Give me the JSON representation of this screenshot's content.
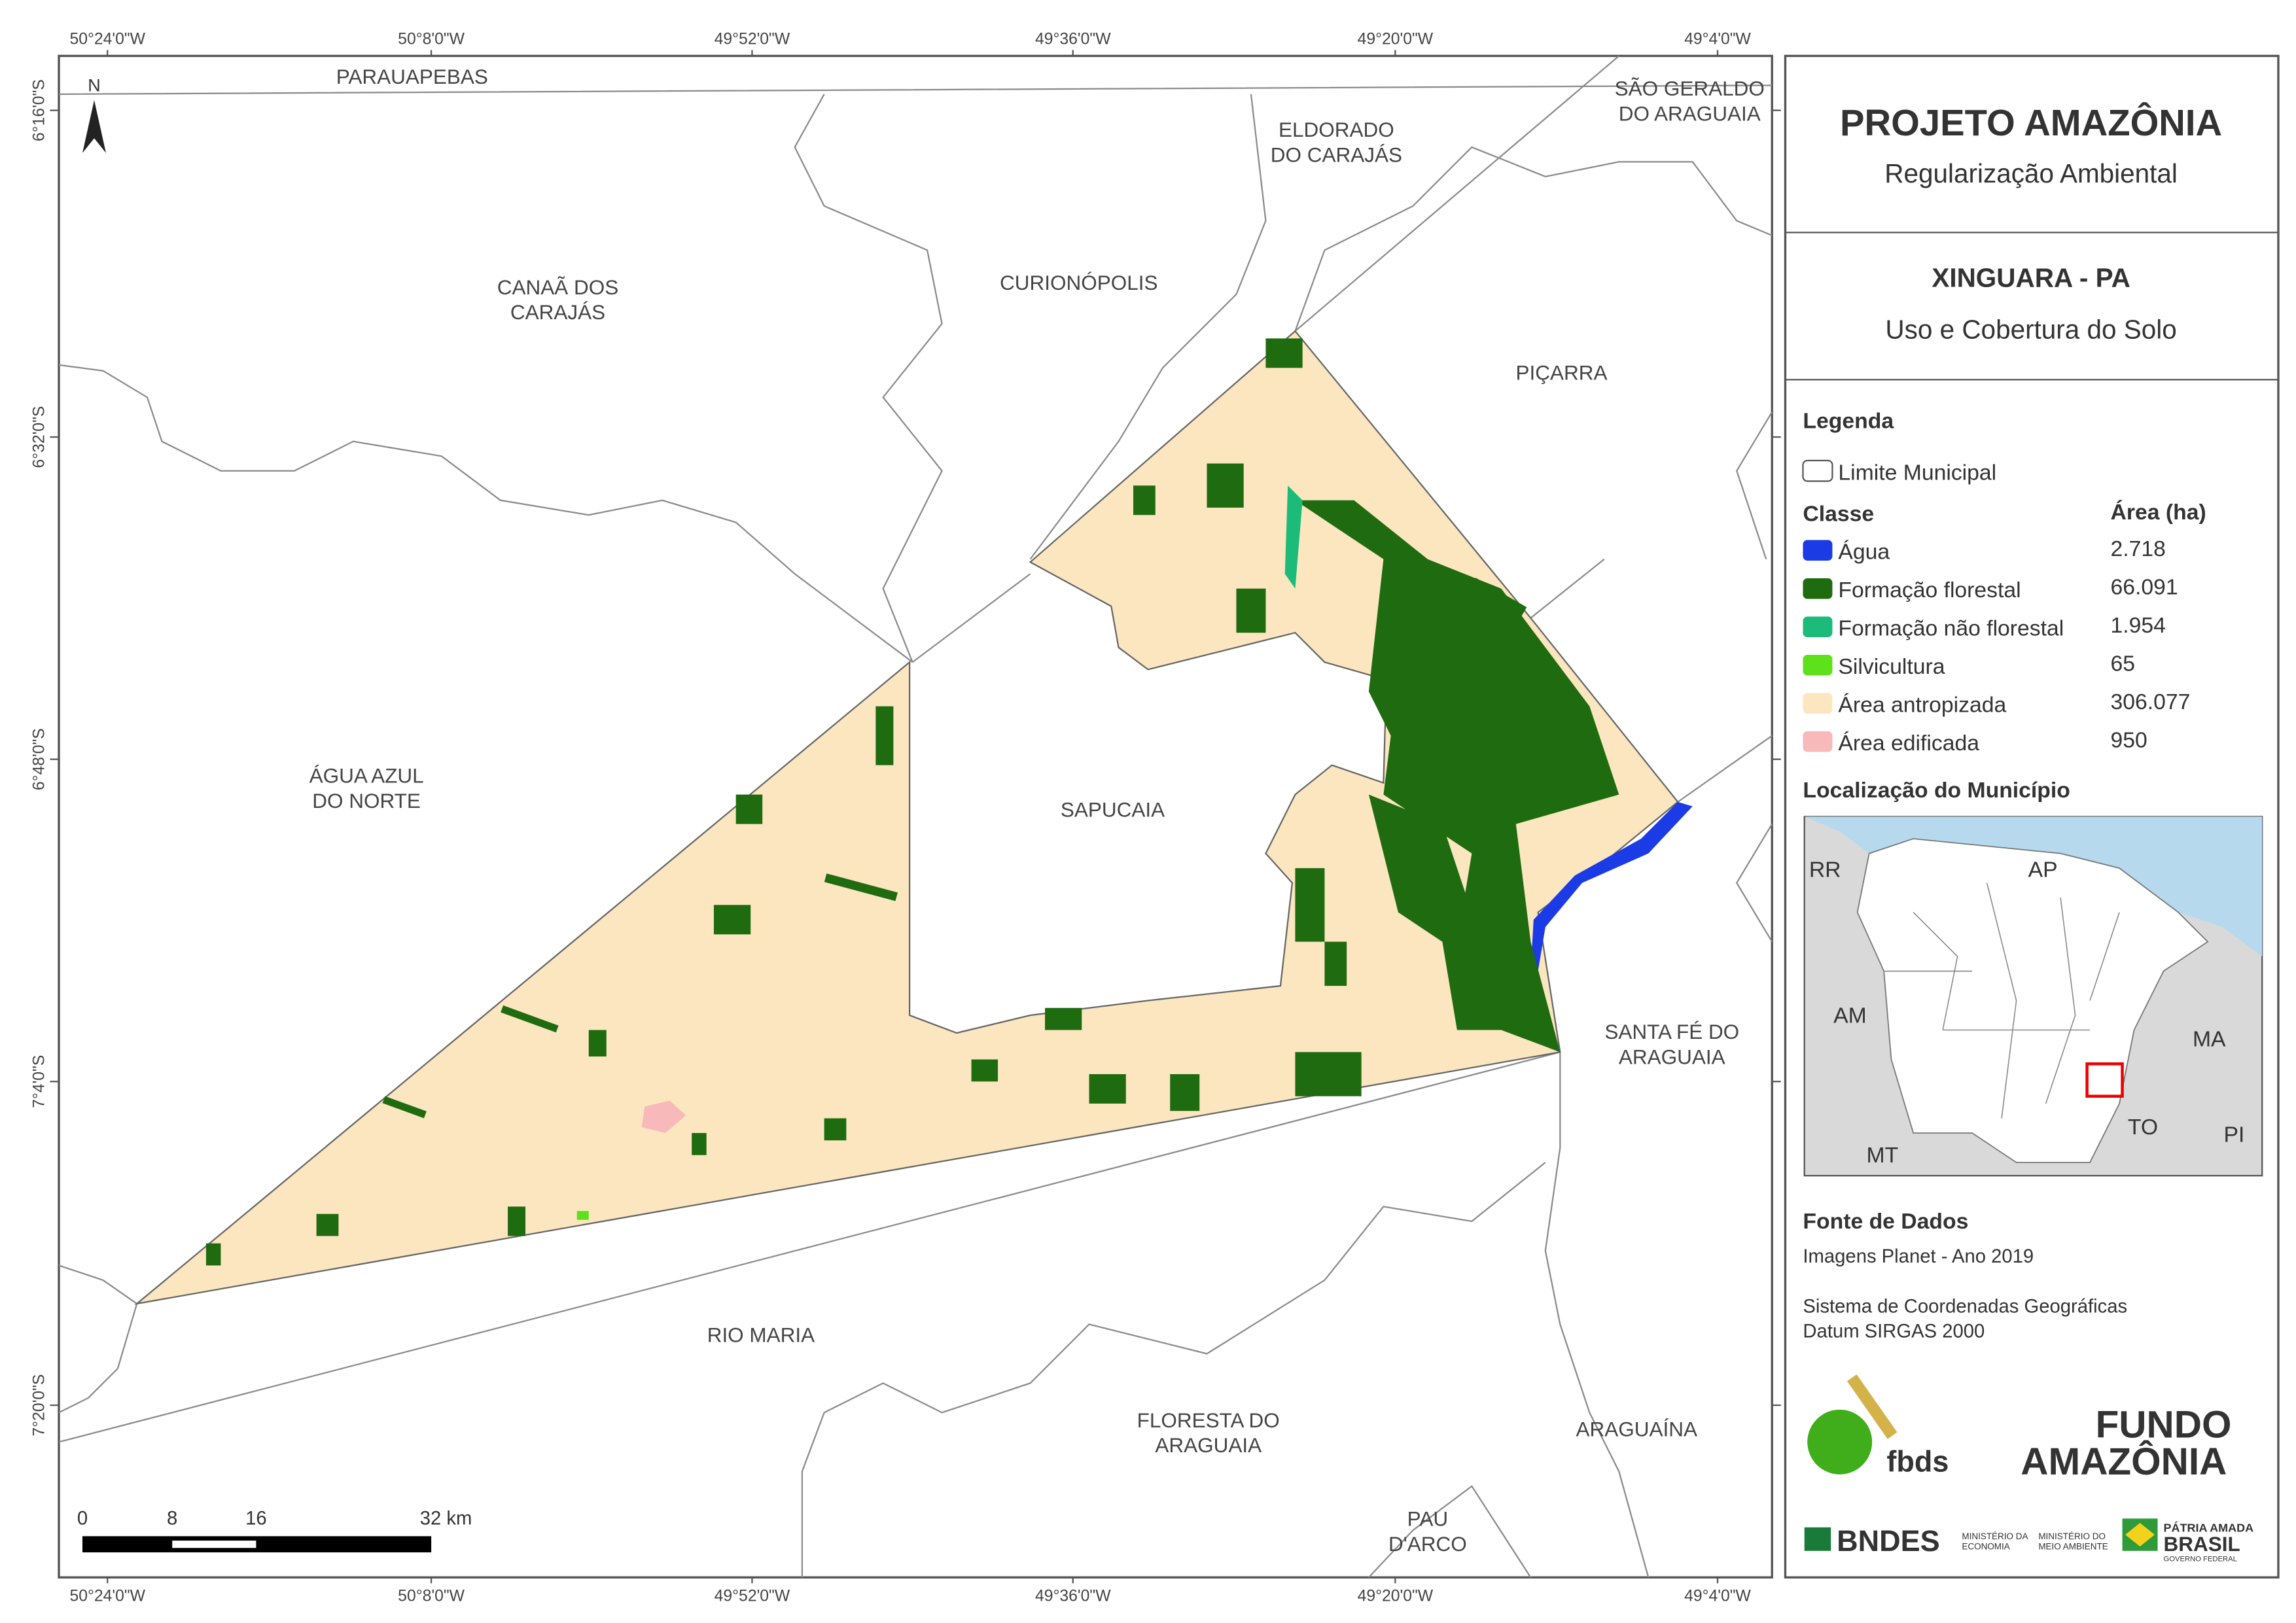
{
  "coordinates": {
    "top": [
      "50°24'0\"W",
      "50°8'0\"W",
      "49°52'0\"W",
      "49°36'0\"W",
      "49°20'0\"W",
      "49°4'0\"W"
    ],
    "bottom": [
      "50°24'0\"W",
      "50°8'0\"W",
      "49°52'0\"W",
      "49°36'0\"W",
      "49°20'0\"W",
      "49°4'0\"W"
    ],
    "left": [
      "6°16'0\"S",
      "6°32'0\"S",
      "6°48'0\"S",
      "7°4'0\"S",
      "7°20'0\"S"
    ]
  },
  "north": "N",
  "places": [
    [
      "PARAUAPEBAS"
    ],
    [
      "SÃO GERALDO",
      "DO ARAGUAIA"
    ],
    [
      "ELDORADO",
      "DO CARAJÁS"
    ],
    [
      "CANAÃ DOS",
      "CARAJÁS"
    ],
    [
      "CURIONÓPOLIS"
    ],
    [
      "PIÇARRA"
    ],
    [
      "ÁGUA AZUL",
      "DO NORTE"
    ],
    [
      "SAPUCAIA"
    ],
    [
      "SANTA FÉ DO",
      "ARAGUAIA"
    ],
    [
      "RIO MARIA"
    ],
    [
      "FLORESTA DO",
      "ARAGUAIA"
    ],
    [
      "ARAGUAÍNA"
    ],
    [
      "PAU",
      "D'ARCO"
    ]
  ],
  "scale": [
    "0",
    "8",
    "16",
    "32 km"
  ],
  "header": {
    "title": "PROJETO AMAZÔNIA",
    "subtitle": "Regularização Ambiental"
  },
  "map_title": {
    "place": "XINGUARA - PA",
    "theme": "Uso e Cobertura do Solo"
  },
  "legend": {
    "title": "Legenda",
    "boundary": "Limite Municipal",
    "class_header": "Classe",
    "area_header": "Área (ha)",
    "classes": [
      {
        "name": "Água",
        "area": "2.718",
        "color": "#1a3be6"
      },
      {
        "name": "Formação florestal",
        "area": "66.091",
        "color": "#1f6b0f"
      },
      {
        "name": "Formação não florestal",
        "area": "1.954",
        "color": "#1dbb7a"
      },
      {
        "name": "Silvicultura",
        "area": "65",
        "color": "#5ee01a"
      },
      {
        "name": "Área antropizada",
        "area": "306.077",
        "color": "#fbe6c0"
      },
      {
        "name": "Área edificada",
        "area": "950",
        "color": "#f7b9b9"
      }
    ]
  },
  "location": {
    "title": "Localização do Município",
    "states": [
      "RR",
      "AP",
      "AM",
      "MA",
      "TO",
      "MT",
      "PI"
    ]
  },
  "sources": {
    "title": "Fonte de Dados",
    "lines": [
      "Imagens Planet - Ano 2019",
      "Sistema de Coordenadas Geográficas",
      "Datum SIRGAS 2000"
    ]
  },
  "logos": {
    "fbds": "fbds",
    "fundo_1": "FUNDO",
    "fundo_2": "AMAZÔNIA",
    "bndes": "BNDES",
    "ministry_1": [
      "MINISTÉRIO DA",
      "ECONOMIA"
    ],
    "ministry_2": [
      "MINISTÉRIO DO",
      "MEIO AMBIENTE"
    ],
    "patria": "PÁTRIA AMADA",
    "brasil": "BRASIL",
    "gov": "GOVERNO FEDERAL"
  }
}
